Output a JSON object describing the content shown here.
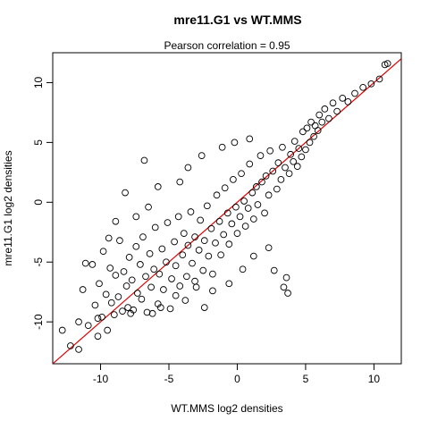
{
  "chart_data": {
    "type": "scatter",
    "title": "mre11.G1 vs WT.MMS",
    "subtitle": "Pearson correlation =  0.95",
    "xlabel": "WT.MMS log2 densities",
    "ylabel": "mre11.G1 log2 densities",
    "xlim": [
      -13.5,
      12
    ],
    "ylim": [
      -13.5,
      12.5
    ],
    "x_ticks": [
      -10,
      -5,
      0,
      5,
      10
    ],
    "y_ticks": [
      -10,
      -5,
      0,
      5,
      10
    ],
    "x_tick_labels": [
      "-10",
      "-5",
      "0",
      "5",
      "10"
    ],
    "y_tick_labels": [
      "-10",
      "-5",
      "0",
      "5",
      "10"
    ],
    "marker": "open-circle",
    "line": {
      "type": "y=x",
      "color": "#e00000"
    },
    "grid": false,
    "series": [
      {
        "points": [
          [
            -12.8,
            -10.7
          ],
          [
            -12.2,
            -12.0
          ],
          [
            -11.6,
            -12.3
          ],
          [
            -11.1,
            -5.1
          ],
          [
            -11.3,
            -7.3
          ],
          [
            -10.9,
            -10.3
          ],
          [
            -10.4,
            -8.6
          ],
          [
            -10.2,
            -11.2
          ],
          [
            -10.1,
            -6.8
          ],
          [
            -9.9,
            -9.6
          ],
          [
            -9.8,
            -4.1
          ],
          [
            -9.6,
            -7.7
          ],
          [
            -9.5,
            -10.7
          ],
          [
            -9.3,
            -5.5
          ],
          [
            -9.2,
            -8.4
          ],
          [
            -9.0,
            -9.4
          ],
          [
            -8.9,
            -6.1
          ],
          [
            -8.7,
            -7.9
          ],
          [
            -8.6,
            -3.2
          ],
          [
            -8.4,
            -9.1
          ],
          [
            -8.3,
            -5.8
          ],
          [
            -8.1,
            -7.0
          ],
          [
            -8.0,
            -8.8
          ],
          [
            -7.9,
            -4.6
          ],
          [
            -7.7,
            -6.5
          ],
          [
            -7.6,
            -9.0
          ],
          [
            -7.4,
            -3.7
          ],
          [
            -7.3,
            -7.6
          ],
          [
            -7.1,
            -5.2
          ],
          [
            -7.0,
            -8.1
          ],
          [
            -6.9,
            -2.9
          ],
          [
            -6.7,
            -6.2
          ],
          [
            -6.6,
            -9.2
          ],
          [
            -6.4,
            -4.3
          ],
          [
            -6.3,
            -7.1
          ],
          [
            -6.1,
            -5.6
          ],
          [
            -6.0,
            -2.1
          ],
          [
            -5.8,
            -8.5
          ],
          [
            -5.7,
            -6.0
          ],
          [
            -5.5,
            -3.9
          ],
          [
            -5.4,
            -7.3
          ],
          [
            -5.2,
            -5.0
          ],
          [
            -5.1,
            -1.7
          ],
          [
            -4.9,
            -8.9
          ],
          [
            -4.8,
            -6.4
          ],
          [
            -4.6,
            -3.3
          ],
          [
            -4.5,
            -5.3
          ],
          [
            -4.3,
            -1.2
          ],
          [
            -4.2,
            -7.0
          ],
          [
            -4.0,
            -4.4
          ],
          [
            -3.9,
            -2.6
          ],
          [
            -3.7,
            -6.2
          ],
          [
            -3.6,
            -3.6
          ],
          [
            -3.4,
            -0.8
          ],
          [
            -3.3,
            -5.1
          ],
          [
            -3.1,
            -2.9
          ],
          [
            -3.0,
            -7.1
          ],
          [
            -2.8,
            -4.0
          ],
          [
            -2.7,
            -1.5
          ],
          [
            -2.5,
            -5.7
          ],
          [
            -2.4,
            -3.2
          ],
          [
            -2.2,
            -0.3
          ],
          [
            -2.1,
            -4.5
          ],
          [
            -1.9,
            -2.2
          ],
          [
            -1.8,
            -6.0
          ],
          [
            -1.6,
            -3.4
          ],
          [
            -1.5,
            0.6
          ],
          [
            -1.3,
            -1.6
          ],
          [
            -1.2,
            -4.4
          ],
          [
            -1.0,
            -2.7
          ],
          [
            -0.9,
            1.2
          ],
          [
            -0.7,
            -0.9
          ],
          [
            -0.6,
            -3.5
          ],
          [
            -0.4,
            -1.8
          ],
          [
            -0.3,
            1.9
          ],
          [
            -0.1,
            -0.4
          ],
          [
            0.0,
            -2.6
          ],
          [
            0.2,
            -1.2
          ],
          [
            0.3,
            2.4
          ],
          [
            0.5,
            0.1
          ],
          [
            0.6,
            -2.0
          ],
          [
            0.8,
            -0.5
          ],
          [
            0.9,
            3.2
          ],
          [
            1.1,
            0.8
          ],
          [
            1.2,
            -1.4
          ],
          [
            1.4,
            1.3
          ],
          [
            1.5,
            -0.2
          ],
          [
            1.7,
            3.9
          ],
          [
            1.8,
            1.7
          ],
          [
            2.0,
            -0.9
          ],
          [
            2.1,
            2.2
          ],
          [
            2.3,
            0.6
          ],
          [
            2.4,
            4.3
          ],
          [
            2.6,
            2.6
          ],
          [
            2.7,
            -5.7
          ],
          [
            2.9,
            1.1
          ],
          [
            3.0,
            3.3
          ],
          [
            3.2,
            1.9
          ],
          [
            3.3,
            4.6
          ],
          [
            3.5,
            2.9
          ],
          [
            3.6,
            -6.3
          ],
          [
            3.8,
            2.4
          ],
          [
            3.9,
            4.0
          ],
          [
            4.1,
            3.4
          ],
          [
            4.2,
            5.1
          ],
          [
            4.4,
            3.0
          ],
          [
            4.5,
            4.5
          ],
          [
            4.7,
            3.8
          ],
          [
            4.8,
            5.9
          ],
          [
            5.0,
            4.4
          ],
          [
            5.1,
            6.2
          ],
          [
            5.3,
            5.0
          ],
          [
            5.4,
            6.7
          ],
          [
            5.6,
            5.5
          ],
          [
            5.7,
            6.4
          ],
          [
            5.9,
            6.0
          ],
          [
            6.0,
            7.3
          ],
          [
            6.2,
            6.7
          ],
          [
            6.4,
            7.8
          ],
          [
            6.7,
            7.0
          ],
          [
            7.0,
            8.3
          ],
          [
            7.3,
            7.6
          ],
          [
            7.7,
            8.7
          ],
          [
            8.1,
            8.4
          ],
          [
            8.6,
            9.1
          ],
          [
            9.2,
            9.6
          ],
          [
            9.8,
            9.9
          ],
          [
            10.4,
            10.3
          ],
          [
            10.8,
            11.5
          ],
          [
            11.0,
            11.6
          ],
          [
            -2.4,
            -8.8
          ],
          [
            -3.1,
            -6.6
          ],
          [
            -1.8,
            -7.4
          ],
          [
            -0.6,
            -6.8
          ],
          [
            0.4,
            -5.6
          ],
          [
            1.2,
            -4.5
          ],
          [
            2.3,
            -3.8
          ],
          [
            3.4,
            -7.1
          ],
          [
            3.7,
            -7.6
          ],
          [
            -6.8,
            3.5
          ],
          [
            -5.8,
            1.3
          ],
          [
            -6.5,
            -0.4
          ],
          [
            -4.2,
            1.7
          ],
          [
            -3.6,
            2.9
          ],
          [
            -2.6,
            3.9
          ],
          [
            -1.1,
            4.6
          ],
          [
            -0.2,
            5.0
          ],
          [
            0.9,
            5.3
          ],
          [
            -8.2,
            0.8
          ],
          [
            -7.4,
            -1.2
          ],
          [
            -10.6,
            -5.2
          ],
          [
            -9.4,
            -3.0
          ],
          [
            -8.9,
            -1.6
          ],
          [
            -11.6,
            -10.0
          ],
          [
            -10.2,
            -9.7
          ],
          [
            -7.8,
            -9.3
          ],
          [
            -6.2,
            -9.3
          ],
          [
            -4.5,
            -7.8
          ],
          [
            -3.8,
            -8.2
          ],
          [
            -5.6,
            -8.8
          ]
        ]
      }
    ]
  }
}
